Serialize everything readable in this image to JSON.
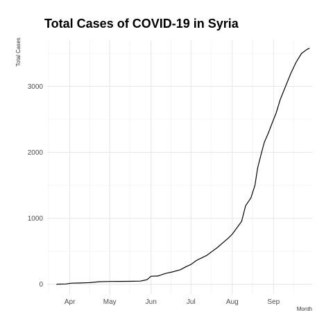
{
  "chart_data": {
    "type": "line",
    "title": "Total Cases of COVID-19 in Syria",
    "xlabel": "Month",
    "ylabel": "Total Cases",
    "x_ticks": [
      "Apr",
      "May",
      "Jun",
      "Jul",
      "Aug",
      "Sep"
    ],
    "y_ticks": [
      0,
      1000,
      2000,
      3000
    ],
    "xlim": [
      "2020-03-15",
      "2020-09-30"
    ],
    "ylim": [
      -150,
      3700
    ],
    "grid": true,
    "series": [
      {
        "x": [
          "2020-03-22",
          "2020-03-29",
          "2020-04-02",
          "2020-04-09",
          "2020-04-16",
          "2020-04-23",
          "2020-05-01",
          "2020-05-08",
          "2020-05-16",
          "2020-05-24",
          "2020-05-27",
          "2020-05-29",
          "2020-06-01",
          "2020-06-06",
          "2020-06-12",
          "2020-06-17",
          "2020-06-23",
          "2020-06-27",
          "2020-07-01",
          "2020-07-05",
          "2020-07-09",
          "2020-07-13",
          "2020-07-17",
          "2020-07-21",
          "2020-07-25",
          "2020-07-29",
          "2020-08-01",
          "2020-08-05",
          "2020-08-08",
          "2020-08-11",
          "2020-08-15",
          "2020-08-18",
          "2020-08-20",
          "2020-08-23",
          "2020-08-25",
          "2020-08-28",
          "2020-09-01",
          "2020-09-03",
          "2020-09-06",
          "2020-09-10",
          "2020-09-14",
          "2020-09-18",
          "2020-09-22",
          "2020-09-26",
          "2020-09-28"
        ],
        "y": [
          1,
          5,
          16,
          19,
          25,
          38,
          43,
          44,
          45,
          48,
          60,
          70,
          121,
          125,
          164,
          187,
          220,
          263,
          300,
          360,
          400,
          440,
          500,
          560,
          630,
          700,
          760,
          870,
          955,
          1190,
          1310,
          1500,
          1760,
          2000,
          2150,
          2290,
          2500,
          2600,
          2800,
          3000,
          3200,
          3370,
          3500,
          3560,
          3580
        ]
      }
    ]
  }
}
